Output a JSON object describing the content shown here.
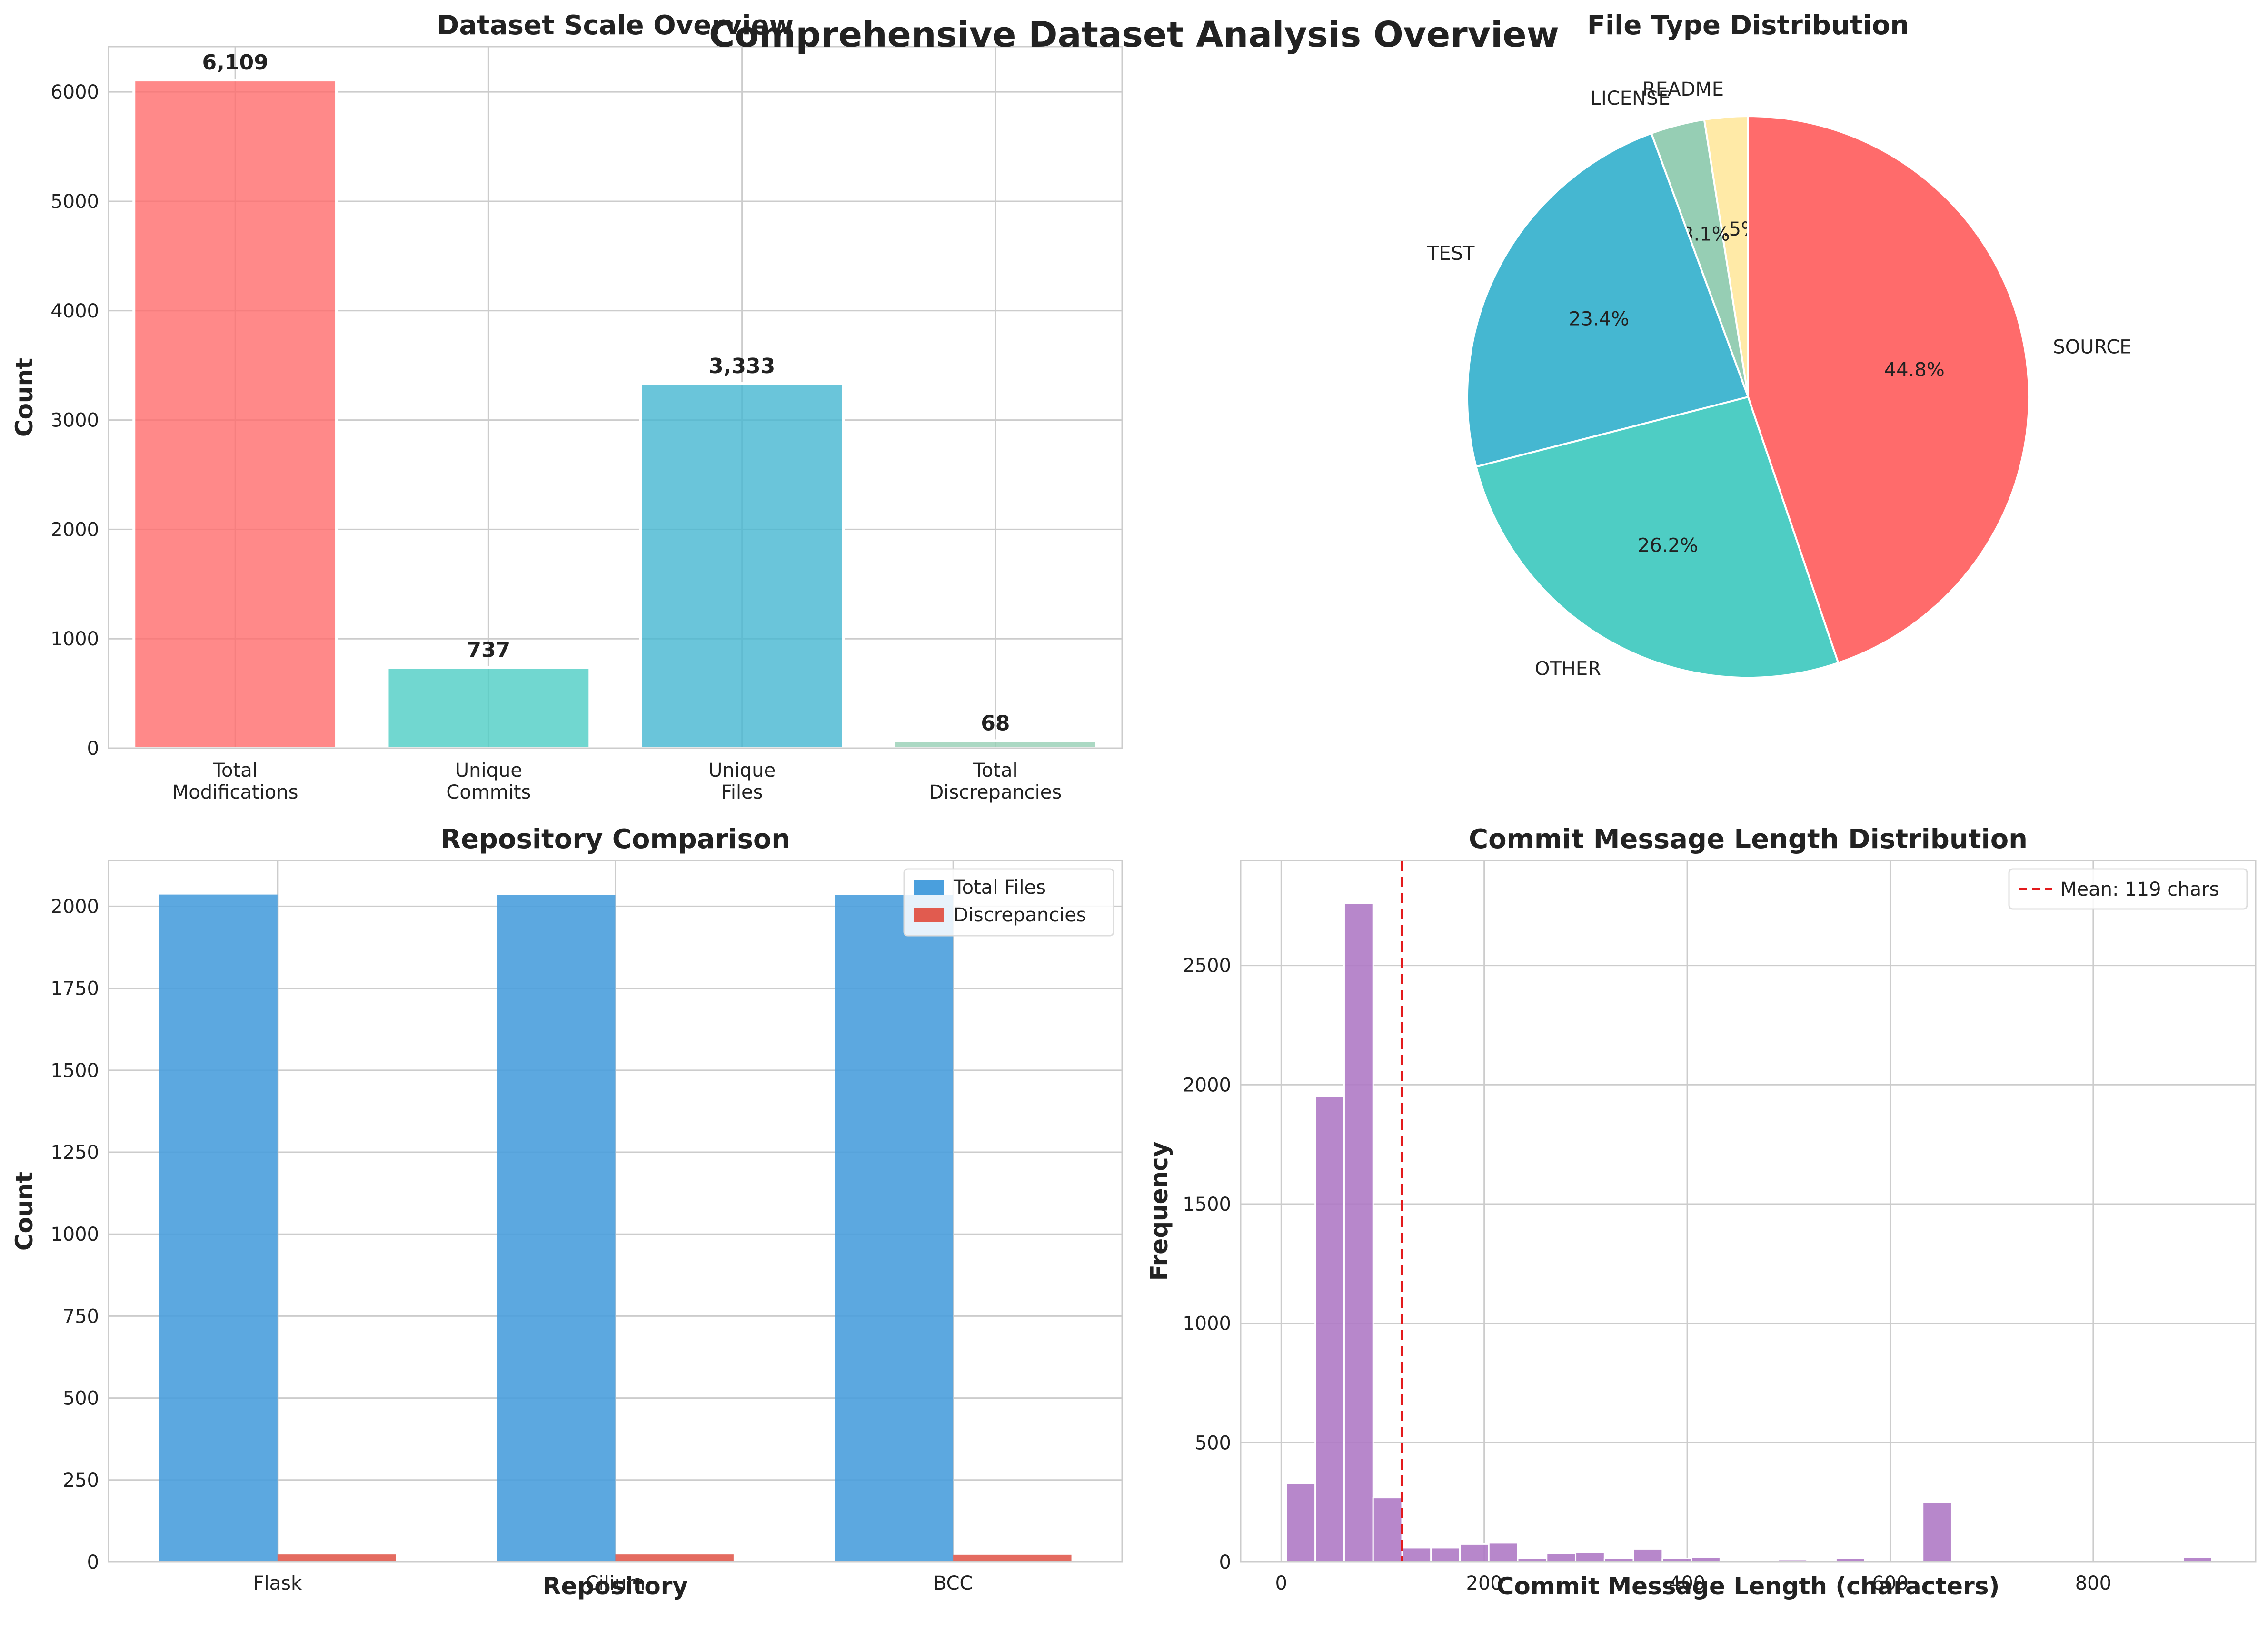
{
  "figure": {
    "title": "Comprehensive Dataset Analysis Overview"
  },
  "chart_data": [
    {
      "id": "scale",
      "type": "bar",
      "title": "Dataset Scale Overview",
      "xlabel": "",
      "ylabel": "Count",
      "categories": [
        [
          "Total",
          "Modifications"
        ],
        [
          "Unique",
          "Commits"
        ],
        [
          "Unique",
          "Files"
        ],
        [
          "Total",
          "Discrepancies"
        ]
      ],
      "values": [
        6109,
        737,
        3333,
        68
      ],
      "value_labels": [
        "6,109",
        "737",
        "3,333",
        "68"
      ],
      "colors": [
        "#FF6B6B",
        "#4ECDC4",
        "#45B7D1",
        "#96CEB4"
      ],
      "ylim": [
        0,
        6414
      ],
      "yticks": [
        0,
        1000,
        2000,
        3000,
        4000,
        5000,
        6000
      ],
      "grid": true
    },
    {
      "id": "filetype",
      "type": "pie",
      "title": "File Type Distribution",
      "labels": [
        "README",
        "LICENSE",
        "TEST",
        "OTHER",
        "SOURCE"
      ],
      "values": [
        2.5,
        3.1,
        23.4,
        26.2,
        44.8
      ],
      "pct_labels": [
        "2.5%",
        "3.1%",
        "23.4%",
        "26.2%",
        "44.8%"
      ],
      "colors": [
        "#FFEAA7",
        "#96CEB4",
        "#45B7D1",
        "#4ECDC4",
        "#FF6B6B"
      ]
    },
    {
      "id": "repo",
      "type": "bar",
      "title": "Repository Comparison",
      "xlabel": "Repository",
      "ylabel": "Count",
      "categories": [
        "Flask",
        "Cilium",
        "BCC"
      ],
      "series": [
        {
          "name": "Total Files",
          "values": [
            2036,
            2035,
            2035
          ],
          "color": "#4A9FDD"
        },
        {
          "name": "Discrepancies",
          "values": [
            23,
            23,
            22
          ],
          "color": "#E15B4F"
        }
      ],
      "ylim": [
        0,
        2140
      ],
      "yticks": [
        0,
        250,
        500,
        750,
        1000,
        1250,
        1500,
        1750,
        2000
      ],
      "legend": "top-right",
      "grid": true
    },
    {
      "id": "commitlen",
      "type": "bar",
      "title": "Commit Message Length Distribution",
      "xlabel": "Commit Message Length (characters)",
      "ylabel": "Frequency",
      "bin_start": 5,
      "bin_width": 28.5,
      "values": [
        330,
        1950,
        2760,
        270,
        60,
        60,
        75,
        80,
        15,
        35,
        40,
        15,
        55,
        15,
        20,
        0,
        0,
        10,
        0,
        15,
        0,
        0,
        250,
        0,
        0,
        0,
        0,
        0,
        0,
        0,
        0,
        20
      ],
      "color": "#AF7AC5",
      "mean": 119,
      "mean_label": "Mean: 119 chars",
      "xlim": [
        -40,
        960
      ],
      "xticks": [
        0,
        200,
        400,
        600,
        800
      ],
      "ylim": [
        0,
        2940
      ],
      "yticks": [
        0,
        500,
        1000,
        1500,
        2000,
        2500
      ],
      "legend": "top-right",
      "grid": true
    }
  ]
}
